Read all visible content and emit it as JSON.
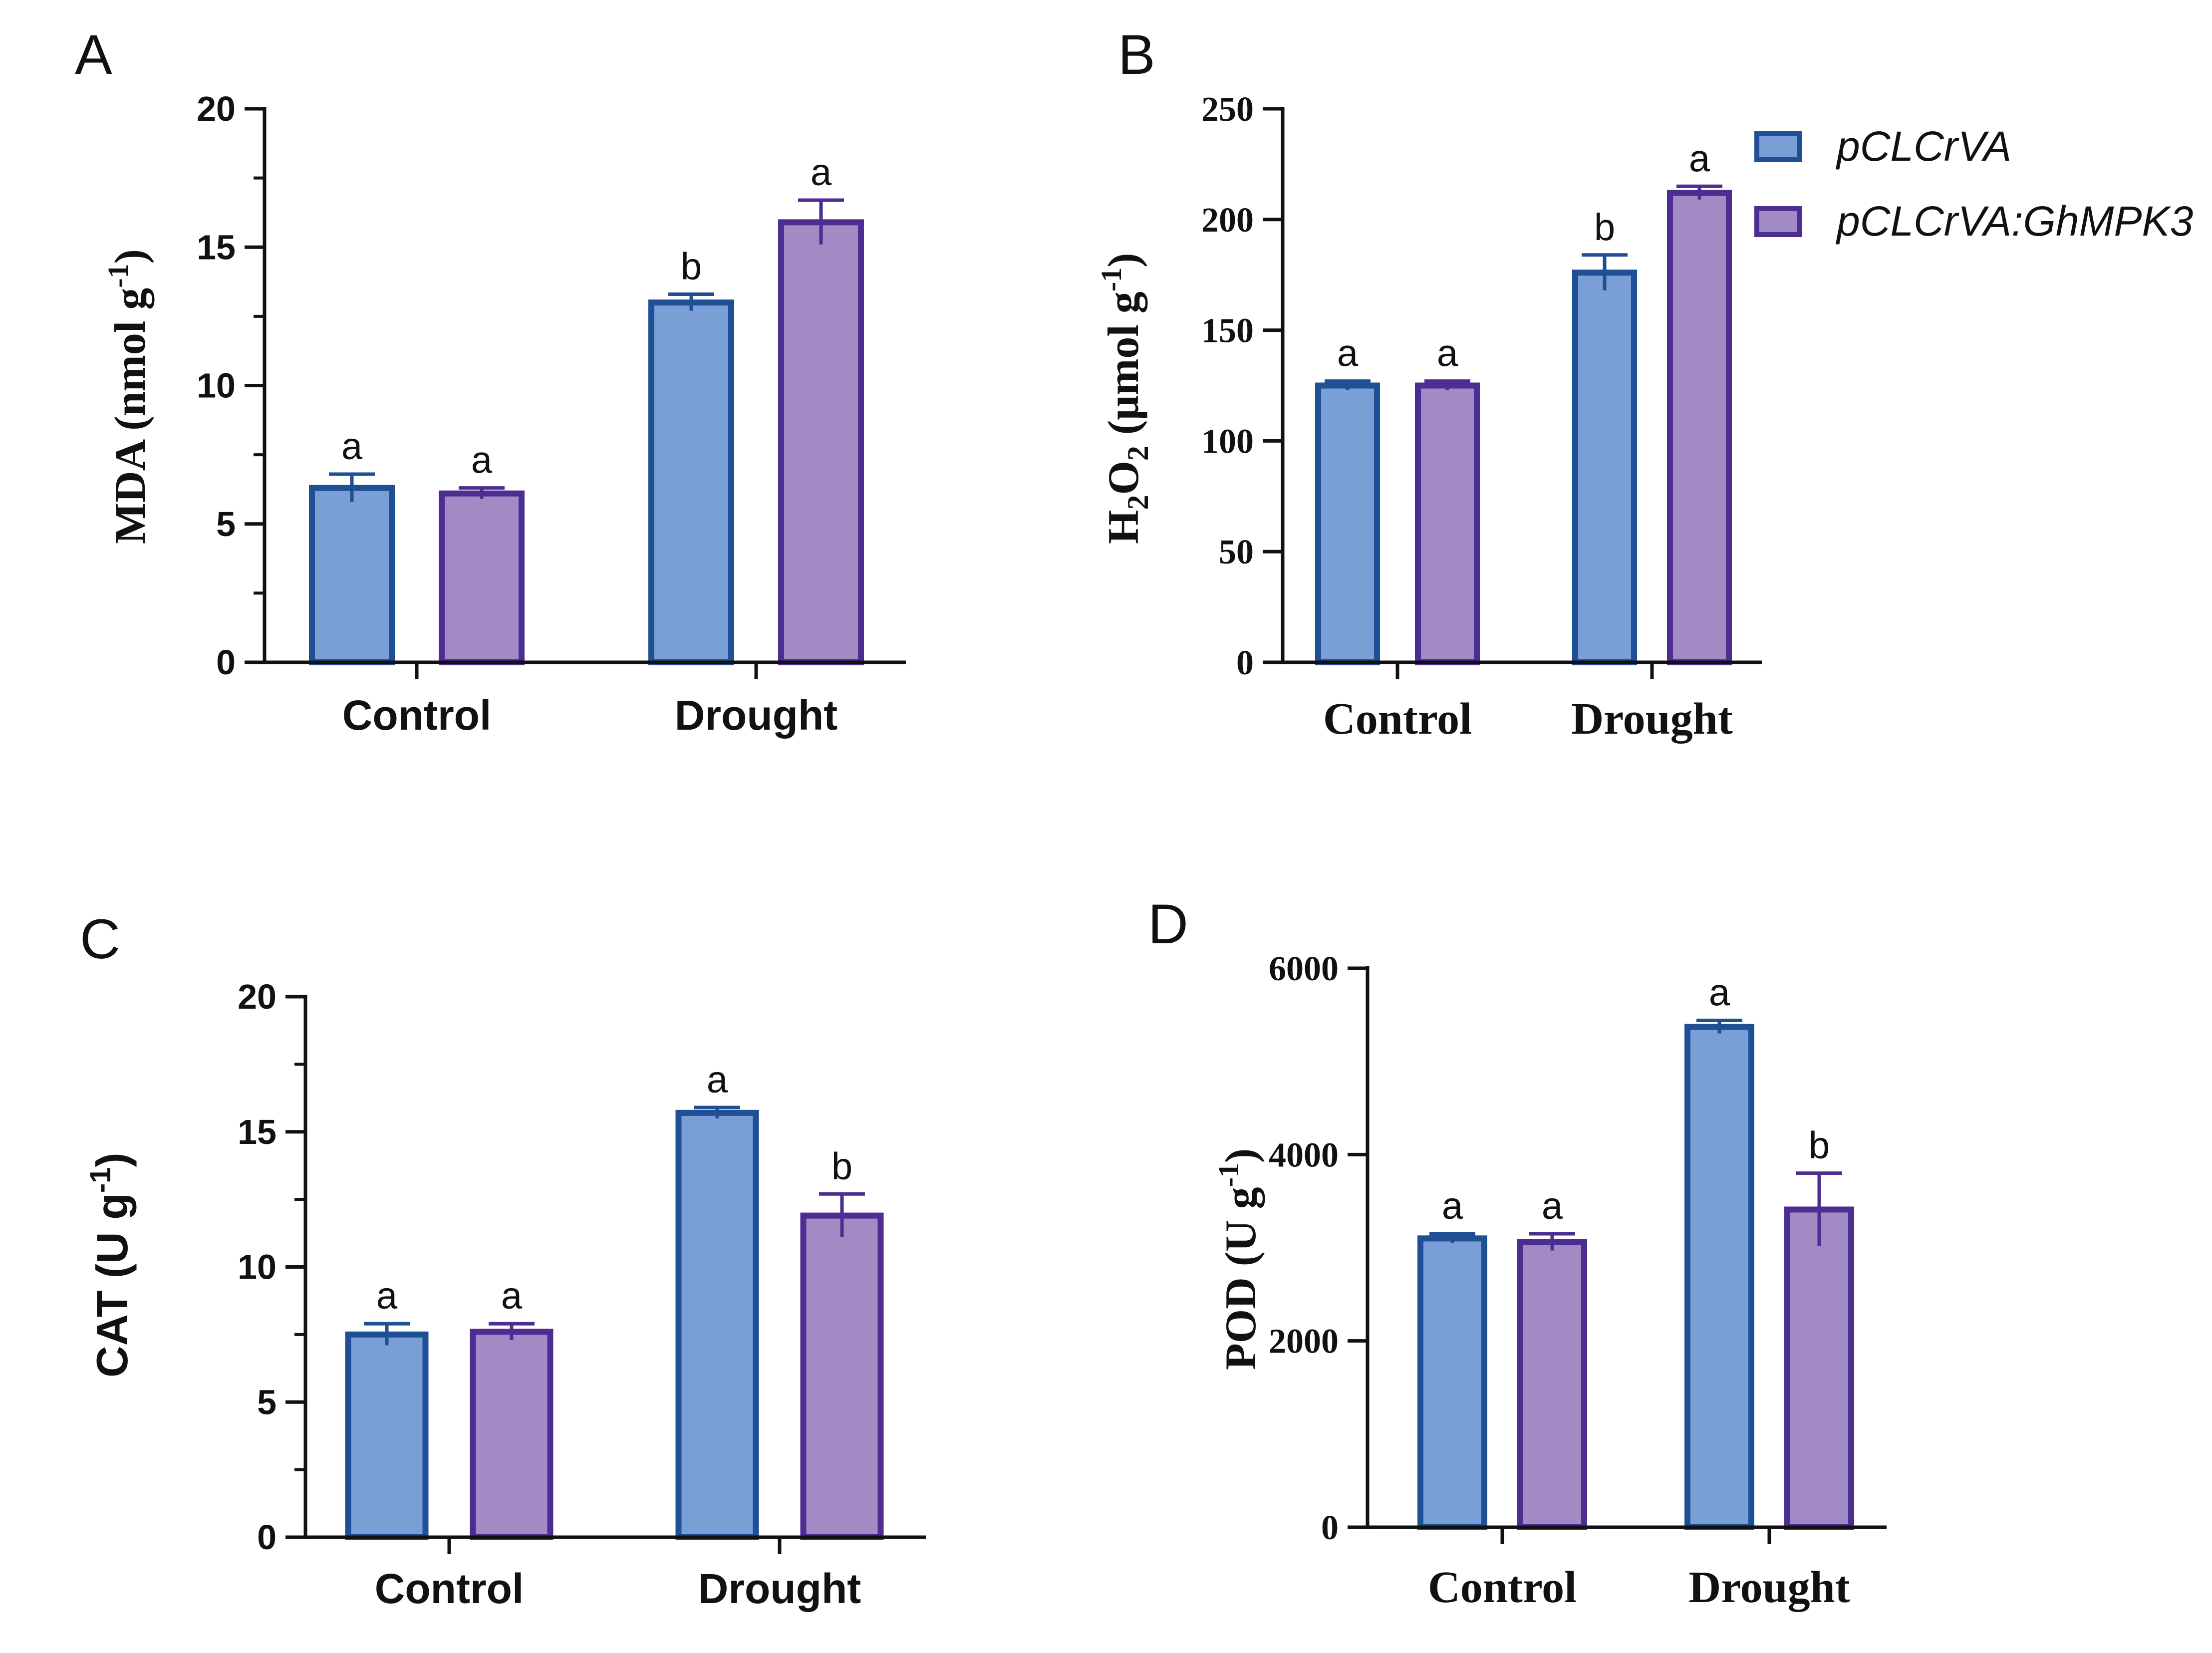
{
  "colors": {
    "series1_fill": "#7a9fd6",
    "series1_stroke": "#1f4f95",
    "series2_fill": "#a28ac4",
    "series2_stroke": "#4e2d93",
    "axis": "#111111"
  },
  "legend": {
    "items": [
      {
        "label": "pCLCrVA"
      },
      {
        "label": "pCLCrVA:GhMPK3"
      }
    ]
  },
  "chart_data": [
    {
      "panel": "A",
      "type": "bar",
      "categories": [
        "Control",
        "Drought"
      ],
      "series": [
        {
          "name": "pCLCrVA",
          "values": [
            6.3,
            13.0
          ],
          "errors": [
            0.5,
            0.3
          ],
          "letters": [
            "a",
            "b"
          ]
        },
        {
          "name": "pCLCrVA:GhMPK3",
          "values": [
            6.1,
            15.9
          ],
          "errors": [
            0.2,
            0.8
          ],
          "letters": [
            "a",
            "a"
          ]
        }
      ],
      "ylabel": {
        "main": "MDA (nmol g",
        "sup": "-1",
        "tail": ")"
      },
      "ylim": [
        0,
        20
      ],
      "yticks": [
        0,
        5,
        10,
        15,
        20
      ]
    },
    {
      "panel": "B",
      "type": "bar",
      "categories": [
        "Control",
        "Drought"
      ],
      "series": [
        {
          "name": "pCLCrVA",
          "values": [
            125,
            176
          ],
          "errors": [
            2,
            8
          ],
          "letters": [
            "a",
            "b"
          ]
        },
        {
          "name": "pCLCrVA:GhMPK3",
          "values": [
            125,
            212
          ],
          "errors": [
            2,
            3
          ],
          "letters": [
            "a",
            "a"
          ]
        }
      ],
      "ylabel": {
        "h": "H",
        "sub1": "2",
        "o": "O",
        "sub2": "2",
        "rest": " (μmol g",
        "sup": "-1",
        "tail": ")"
      },
      "ylim": [
        0,
        250
      ],
      "yticks": [
        0,
        50,
        100,
        150,
        200,
        250
      ]
    },
    {
      "panel": "C",
      "type": "bar",
      "categories": [
        "Control",
        "Drought"
      ],
      "series": [
        {
          "name": "pCLCrVA",
          "values": [
            7.5,
            15.7
          ],
          "errors": [
            0.4,
            0.2
          ],
          "letters": [
            "a",
            "a"
          ]
        },
        {
          "name": "pCLCrVA:GhMPK3",
          "values": [
            7.6,
            11.9
          ],
          "errors": [
            0.3,
            0.8
          ],
          "letters": [
            "a",
            "b"
          ]
        }
      ],
      "ylabel": {
        "main": "CAT (U g",
        "sup": "-1",
        "tail": ")"
      },
      "ylim": [
        0,
        20
      ],
      "yticks": [
        0,
        5,
        10,
        15,
        20
      ]
    },
    {
      "panel": "D",
      "type": "bar",
      "categories": [
        "Control",
        "Drought"
      ],
      "series": [
        {
          "name": "pCLCrVA",
          "values": [
            3100,
            5370
          ],
          "errors": [
            50,
            70
          ],
          "letters": [
            "a",
            "a"
          ]
        },
        {
          "name": "pCLCrVA:GhMPK3",
          "values": [
            3060,
            3410
          ],
          "errors": [
            90,
            390
          ],
          "letters": [
            "a",
            "b"
          ]
        }
      ],
      "ylabel": {
        "main": "POD (U g",
        "sup": "-1",
        "tail": ")"
      },
      "ylim": [
        0,
        6000
      ],
      "yticks": [
        0,
        2000,
        4000,
        6000
      ]
    }
  ]
}
